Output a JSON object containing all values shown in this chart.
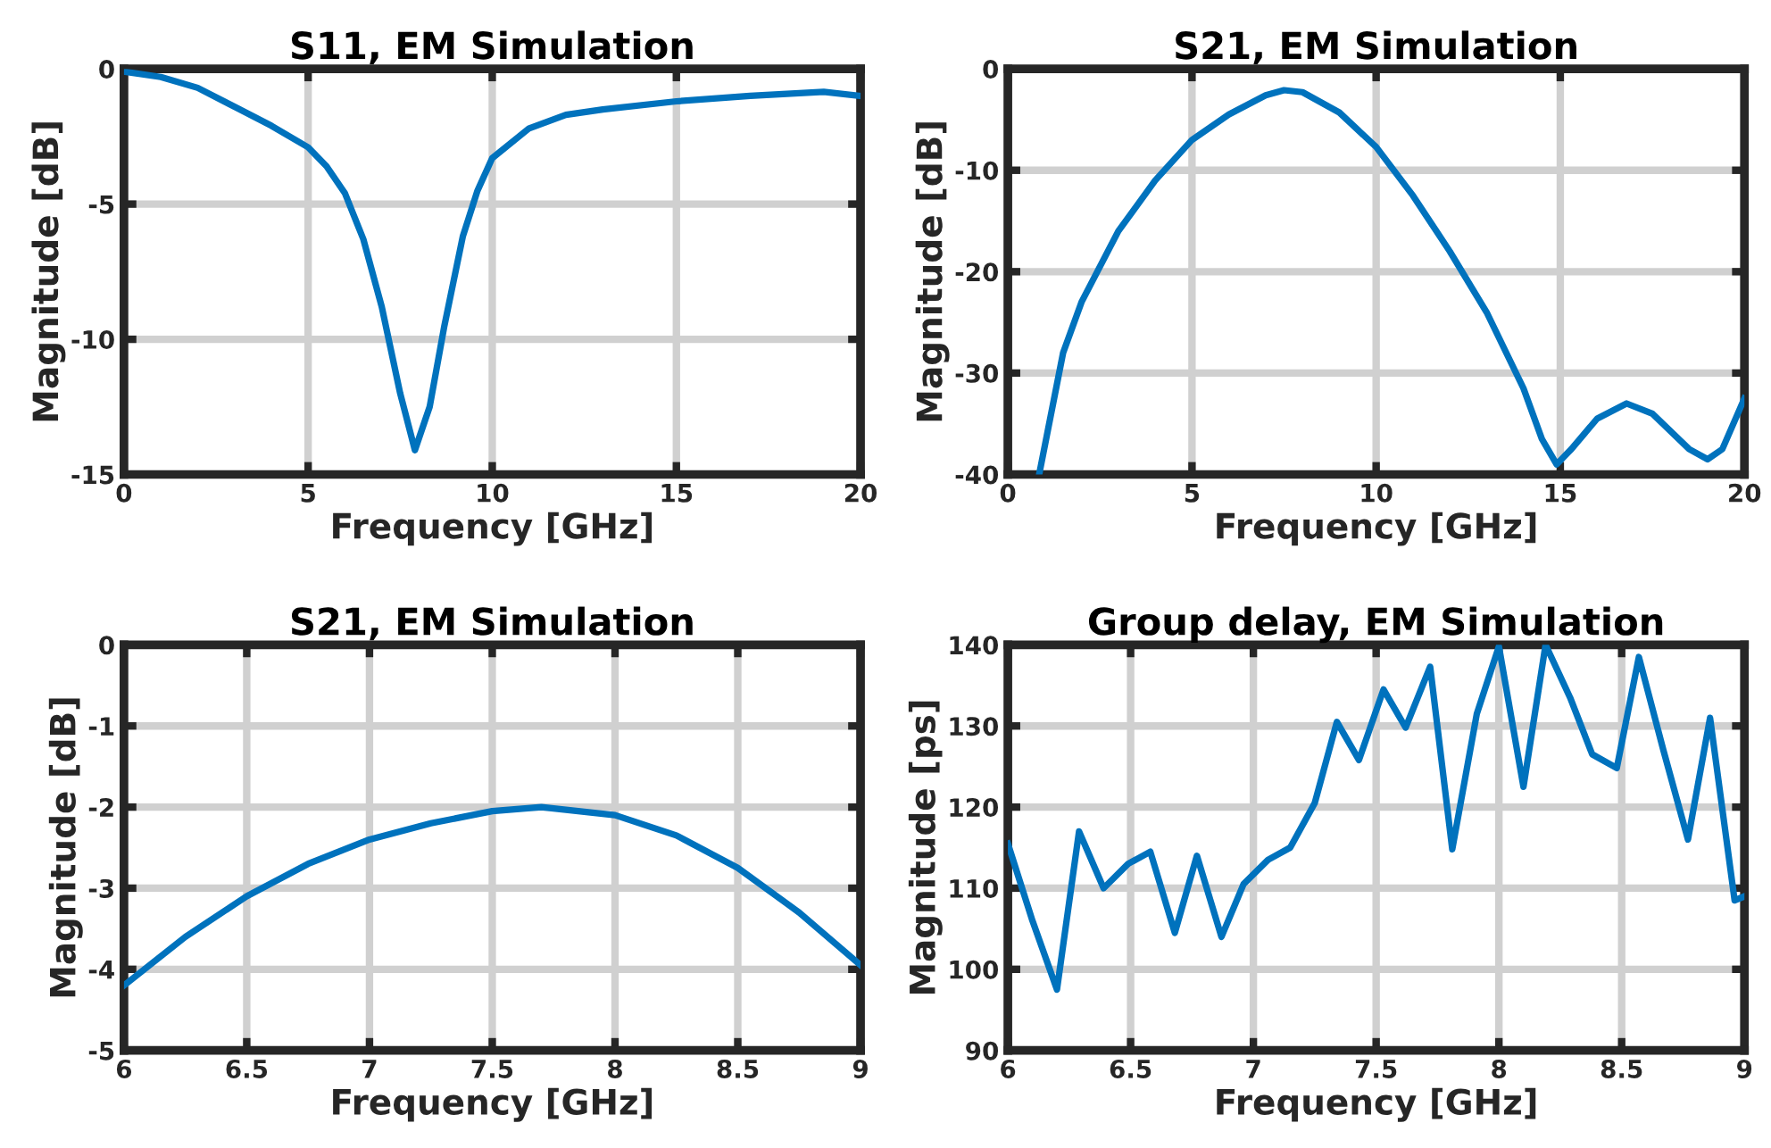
{
  "chart_data": [
    {
      "type": "line",
      "title": "S11, EM Simulation",
      "xlabel": "Frequency [GHz]",
      "ylabel": "Magnitude [dB]",
      "xlim": [
        0,
        20
      ],
      "ylim": [
        -15,
        0
      ],
      "xticks": [
        0,
        5,
        10,
        15,
        20
      ],
      "yticks": [
        -15,
        -10,
        -5,
        0
      ],
      "grid": true,
      "series": [
        {
          "color": "#0072bd",
          "x": [
            0,
            1,
            2,
            3,
            4,
            5,
            5.5,
            6,
            6.5,
            7,
            7.5,
            7.9,
            8.3,
            8.7,
            9.2,
            9.6,
            10,
            11,
            12,
            13,
            15,
            17,
            19,
            20
          ],
          "values": [
            -0.1,
            -0.3,
            -0.7,
            -1.4,
            -2.1,
            -2.9,
            -3.6,
            -4.6,
            -6.3,
            -8.8,
            -12,
            -14.1,
            -12.5,
            -9.5,
            -6.2,
            -4.5,
            -3.3,
            -2.2,
            -1.7,
            -1.5,
            -1.2,
            -1.0,
            -0.85,
            -1.0
          ]
        }
      ]
    },
    {
      "type": "line",
      "title": "S21, EM Simulation",
      "xlabel": "Frequency [GHz]",
      "ylabel": "Magnitude [dB]",
      "xlim": [
        0,
        20
      ],
      "ylim": [
        -40,
        0
      ],
      "xticks": [
        0,
        5,
        10,
        15,
        20
      ],
      "yticks": [
        -40,
        -30,
        -20,
        -10,
        0
      ],
      "grid": true,
      "series": [
        {
          "color": "#0072bd",
          "x": [
            0.85,
            1.5,
            2,
            3,
            4,
            5,
            6,
            7,
            7.5,
            8,
            9,
            10,
            11,
            12,
            13,
            14,
            14.5,
            14.9,
            15.3,
            16,
            16.8,
            17.5,
            18.5,
            19,
            19.4,
            20
          ],
          "values": [
            -40,
            -28,
            -23,
            -16,
            -11,
            -7,
            -4.5,
            -2.6,
            -2.1,
            -2.3,
            -4.3,
            -7.7,
            -12.5,
            -18,
            -24,
            -31.5,
            -36.5,
            -39,
            -37.5,
            -34.5,
            -33,
            -34,
            -37.5,
            -38.5,
            -37.5,
            -32.5
          ]
        }
      ]
    },
    {
      "type": "line",
      "title": "S21, EM Simulation",
      "xlabel": "Frequency [GHz]",
      "ylabel": "Magnitude [dB]",
      "xlim": [
        6,
        9
      ],
      "ylim": [
        -5,
        0
      ],
      "xticks": [
        6,
        6.5,
        7,
        7.5,
        8,
        8.5,
        9
      ],
      "yticks": [
        -5,
        -4,
        -3,
        -2,
        -1,
        0
      ],
      "grid": true,
      "series": [
        {
          "color": "#0072bd",
          "x": [
            6,
            6.25,
            6.5,
            6.75,
            7,
            7.25,
            7.5,
            7.7,
            8,
            8.25,
            8.5,
            8.75,
            9
          ],
          "values": [
            -4.2,
            -3.6,
            -3.1,
            -2.7,
            -2.4,
            -2.2,
            -2.05,
            -2.0,
            -2.1,
            -2.35,
            -2.75,
            -3.3,
            -3.95
          ]
        }
      ]
    },
    {
      "type": "line",
      "title": "Group delay, EM Simulation",
      "xlabel": "Frequency [GHz]",
      "ylabel": "Magnitude [ps]",
      "xlim": [
        6,
        9
      ],
      "ylim": [
        90,
        140
      ],
      "xticks": [
        6,
        6.5,
        7,
        7.5,
        8,
        8.5,
        9
      ],
      "yticks": [
        90,
        100,
        110,
        120,
        130,
        140
      ],
      "grid": true,
      "series": [
        {
          "color": "#0072bd",
          "x": [
            6,
            6.1,
            6.2,
            6.29,
            6.39,
            6.49,
            6.58,
            6.68,
            6.77,
            6.87,
            6.96,
            7.06,
            7.15,
            7.25,
            7.34,
            7.43,
            7.53,
            7.62,
            7.72,
            7.81,
            7.91,
            8.0,
            8.1,
            8.19,
            8.29,
            8.38,
            8.48,
            8.57,
            8.67,
            8.77,
            8.86,
            8.96,
            9
          ],
          "values": [
            115.5,
            106,
            97.5,
            117,
            110,
            113,
            114.5,
            104.5,
            114,
            104,
            110.5,
            113.5,
            115,
            120.5,
            130.5,
            125.8,
            134.5,
            129.8,
            137.3,
            114.8,
            131.5,
            139.8,
            122.5,
            140,
            133.5,
            126.5,
            124.8,
            138.5,
            127,
            116,
            131,
            108.5,
            109
          ]
        }
      ]
    }
  ]
}
